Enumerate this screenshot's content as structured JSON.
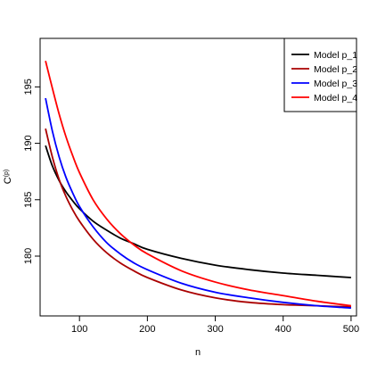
{
  "chart_data": {
    "type": "line",
    "title": "",
    "xlabel": "n",
    "ylabel": "C(p)",
    "ylabel_main": "C",
    "ylabel_superscript": "(p)",
    "xlim": [
      42,
      508
    ],
    "ylim": [
      174.7,
      199.3
    ],
    "xticks": [
      100,
      200,
      300,
      400,
      500
    ],
    "yticks": [
      180,
      185,
      190,
      195
    ],
    "grid": false,
    "legend_position": "top-right",
    "x": [
      50,
      60,
      70,
      80,
      90,
      100,
      120,
      140,
      160,
      180,
      200,
      250,
      300,
      350,
      400,
      450,
      500
    ],
    "series": [
      {
        "name": "Model p_1",
        "color": "#000000",
        "values": [
          189.8,
          188.0,
          186.7,
          185.7,
          184.9,
          184.2,
          183.1,
          182.3,
          181.6,
          181.1,
          180.6,
          179.8,
          179.2,
          178.8,
          178.5,
          178.3,
          178.1
        ]
      },
      {
        "name": "Model p_2",
        "color": "#aa0000",
        "values": [
          191.3,
          188.8,
          186.8,
          185.3,
          184.1,
          183.1,
          181.5,
          180.3,
          179.4,
          178.7,
          178.1,
          177.0,
          176.3,
          175.9,
          175.7,
          175.6,
          175.5
        ]
      },
      {
        "name": "Model p_3",
        "color": "#0000ff",
        "values": [
          194.0,
          191.1,
          188.8,
          187.0,
          185.6,
          184.4,
          182.6,
          181.2,
          180.2,
          179.4,
          178.8,
          177.6,
          176.8,
          176.3,
          175.9,
          175.6,
          175.4
        ]
      },
      {
        "name": "Model p_4",
        "color": "#ff0000",
        "values": [
          197.3,
          194.9,
          192.6,
          190.6,
          188.9,
          187.4,
          185.0,
          183.3,
          182.0,
          181.0,
          180.2,
          178.7,
          177.7,
          177.0,
          176.5,
          176.0,
          175.6
        ]
      }
    ]
  }
}
